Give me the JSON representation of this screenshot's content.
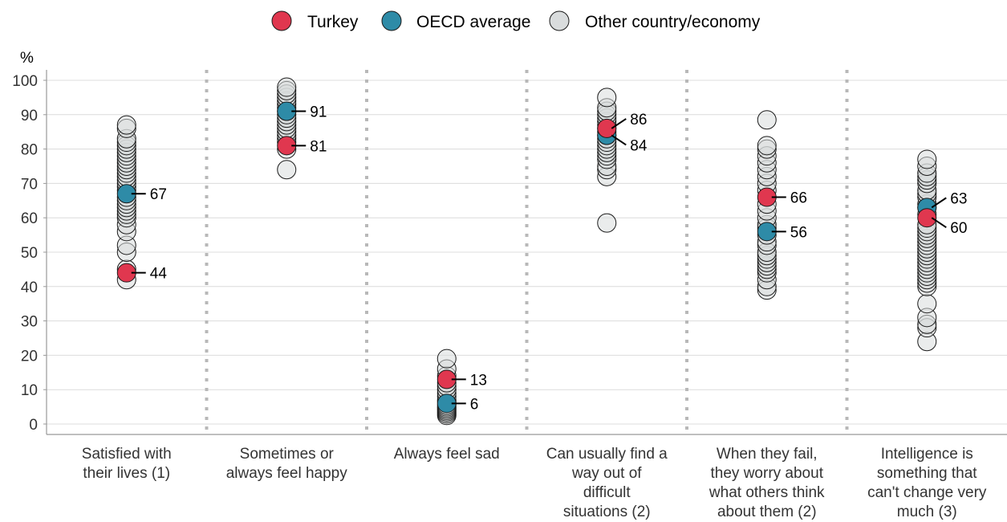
{
  "chart_data": {
    "type": "scatter",
    "ylabel": "%",
    "ylim": [
      0,
      100
    ],
    "yticks": [
      0,
      10,
      20,
      30,
      40,
      50,
      60,
      70,
      80,
      90,
      100
    ],
    "grid": "horizontal",
    "legend_position": "top-center",
    "categories": [
      [
        "Satisfied with",
        "their lives (1)"
      ],
      [
        "Sometimes or",
        "always feel happy"
      ],
      [
        "Always feel sad"
      ],
      [
        "Can usually find a",
        "way out of",
        "difficult",
        "situations (2)"
      ],
      [
        "When they fail,",
        "they worry about",
        "what others think",
        "about them (2)"
      ],
      [
        "Intelligence is",
        "something that",
        "can't change very",
        "much (3)"
      ]
    ],
    "series": [
      {
        "name": "Other country/economy",
        "color": "#d9dcdd",
        "values": [
          [
            42,
            45,
            50,
            52,
            56,
            58,
            60,
            61,
            62,
            63,
            64,
            65,
            66,
            68,
            69,
            70,
            71,
            72,
            73,
            74,
            75,
            76,
            77,
            78,
            79,
            80,
            81,
            82,
            83,
            86,
            87
          ],
          [
            74,
            80,
            82,
            83,
            84,
            85,
            86,
            87,
            88,
            89,
            90,
            91,
            92,
            93,
            94,
            95,
            96,
            97,
            98
          ],
          [
            2.5,
            3,
            3.5,
            4,
            4.5,
            5,
            5.5,
            6.5,
            7,
            8,
            9,
            10,
            11,
            12,
            14,
            16,
            19
          ],
          [
            58.5,
            72,
            74,
            75,
            77,
            78,
            79,
            80,
            81,
            82,
            83,
            84,
            85,
            86,
            87,
            88,
            89,
            90,
            91,
            92,
            95
          ],
          [
            39,
            40,
            42,
            44,
            45,
            46,
            47,
            48,
            49,
            50,
            52,
            53,
            55,
            57,
            58,
            60,
            62,
            64,
            68,
            70,
            72,
            74,
            76,
            78,
            80,
            81,
            88.5
          ],
          [
            24,
            28,
            29,
            31,
            35,
            40,
            41,
            42,
            43,
            44,
            45,
            46,
            47,
            48,
            49,
            50,
            51,
            52,
            53,
            54,
            55,
            56,
            57,
            58,
            61,
            63,
            64,
            66,
            67,
            68,
            70,
            71,
            72,
            73,
            75,
            77
          ]
        ]
      },
      {
        "name": "OECD average",
        "color": "#2e8ba7",
        "values": [
          67,
          91,
          6,
          84,
          56,
          63
        ],
        "labels": [
          "67",
          "91",
          "6",
          "84",
          "56",
          "63"
        ]
      },
      {
        "name": "Turkey",
        "color": "#e0374f",
        "values": [
          44,
          81,
          13,
          86,
          66,
          60
        ],
        "labels": [
          "44",
          "81",
          "13",
          "86",
          "66",
          "60"
        ]
      }
    ],
    "legend": [
      "Turkey",
      "OECD average",
      "Other country/economy"
    ]
  }
}
